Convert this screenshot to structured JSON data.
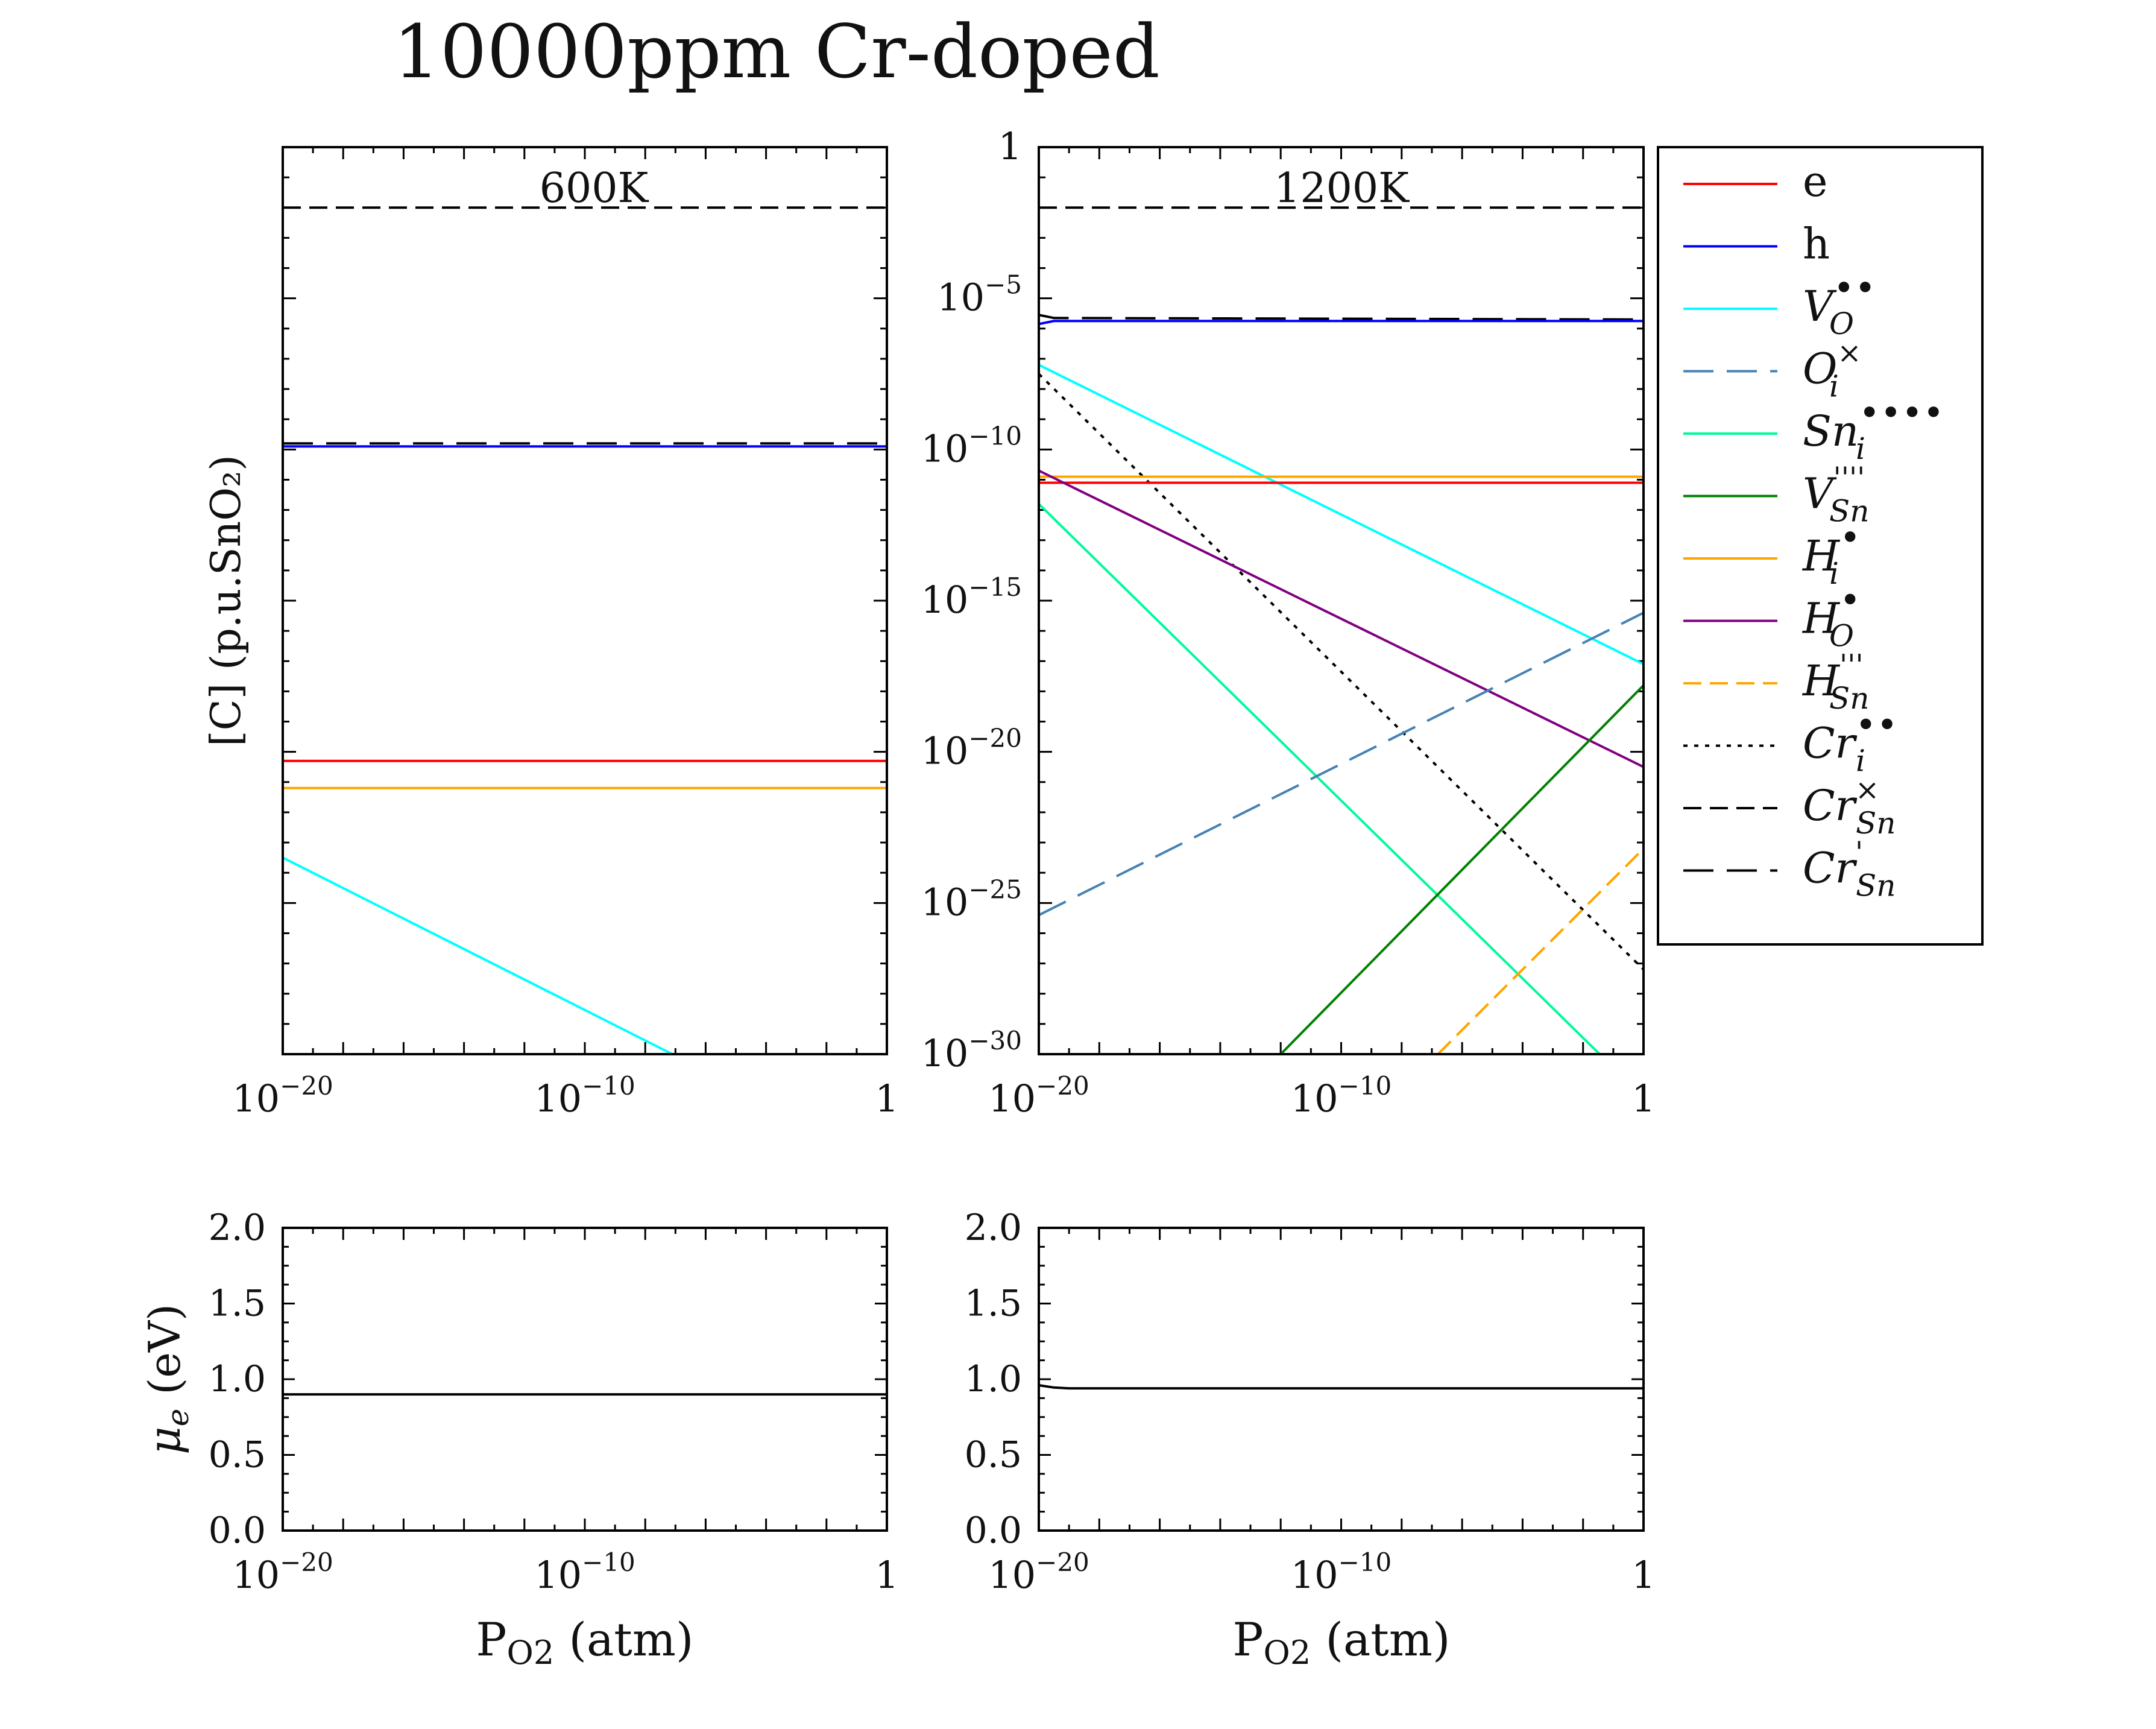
{
  "figure": {
    "title": "10000ppm Cr-doped"
  },
  "chart_data": [
    {
      "type": "line",
      "panel": "top-left",
      "annotation": "600K",
      "xscale": "log",
      "yscale": "log",
      "xlim_log10": [
        -20,
        0
      ],
      "ylim_log10": [
        -30,
        0
      ],
      "ylabel": "[C] (p.u.SnO₂)",
      "xticks": [
        {
          "exp": -20,
          "base": "10",
          "sup": "−20"
        },
        {
          "exp": -10,
          "base": "10",
          "sup": "−10"
        },
        {
          "exp": 0,
          "base": "1",
          "sup": ""
        }
      ],
      "yticks": [],
      "series": [
        {
          "key": "CrSn_x",
          "x": [
            -20,
            0
          ],
          "y": [
            -2.0,
            -2.0
          ]
        },
        {
          "key": "CrSn_1",
          "x": [
            -20,
            0
          ],
          "y": [
            -9.8,
            -9.8
          ]
        },
        {
          "key": "h",
          "x": [
            -20,
            0
          ],
          "y": [
            -9.9,
            -9.9
          ]
        },
        {
          "key": "e",
          "x": [
            -20,
            0
          ],
          "y": [
            -20.3,
            -20.3
          ]
        },
        {
          "key": "Hi",
          "x": [
            -20,
            0
          ],
          "y": [
            -21.2,
            -21.2
          ]
        },
        {
          "key": "VO",
          "x": [
            -20,
            -7.1
          ],
          "y": [
            -23.5,
            -30
          ]
        }
      ]
    },
    {
      "type": "line",
      "panel": "top-right",
      "annotation": "1200K",
      "xscale": "log",
      "yscale": "log",
      "xlim_log10": [
        -20,
        0
      ],
      "ylim_log10": [
        -30,
        0
      ],
      "xticks": [
        {
          "exp": -20,
          "base": "10",
          "sup": "−20"
        },
        {
          "exp": -10,
          "base": "10",
          "sup": "−10"
        },
        {
          "exp": 0,
          "base": "1",
          "sup": ""
        }
      ],
      "yticks": [
        {
          "exp": 0,
          "base": "1",
          "sup": ""
        },
        {
          "exp": -5,
          "base": "10",
          "sup": "−5"
        },
        {
          "exp": -10,
          "base": "10",
          "sup": "−10"
        },
        {
          "exp": -15,
          "base": "10",
          "sup": "−15"
        },
        {
          "exp": -20,
          "base": "10",
          "sup": "−20"
        },
        {
          "exp": -25,
          "base": "10",
          "sup": "−25"
        },
        {
          "exp": -30,
          "base": "10",
          "sup": "−30"
        }
      ],
      "series": [
        {
          "key": "CrSn_x",
          "x": [
            -20,
            0
          ],
          "y": [
            -2.0,
            -2.0
          ]
        },
        {
          "key": "CrSn_1",
          "x": [
            -20,
            -19.5,
            0
          ],
          "y": [
            -5.55,
            -5.65,
            -5.7
          ]
        },
        {
          "key": "h",
          "x": [
            -20,
            -19.5,
            0
          ],
          "y": [
            -5.85,
            -5.75,
            -5.75
          ]
        },
        {
          "key": "VO",
          "x": [
            -20,
            0
          ],
          "y": [
            -7.2,
            -17.1
          ]
        },
        {
          "key": "Cri",
          "x": [
            -20,
            0
          ],
          "y": [
            -7.5,
            -27.2
          ]
        },
        {
          "key": "Hi",
          "x": [
            -20,
            0
          ],
          "y": [
            -10.9,
            -10.9
          ]
        },
        {
          "key": "e",
          "x": [
            -20,
            0
          ],
          "y": [
            -11.1,
            -11.1
          ]
        },
        {
          "key": "HO",
          "x": [
            -20,
            0
          ],
          "y": [
            -10.7,
            -20.5
          ]
        },
        {
          "key": "Sni",
          "x": [
            -20,
            -1.45
          ],
          "y": [
            -11.8,
            -30
          ]
        },
        {
          "key": "Oi",
          "x": [
            -20,
            0
          ],
          "y": [
            -25.4,
            -15.4
          ]
        },
        {
          "key": "VSn",
          "x": [
            -12,
            0
          ],
          "y": [
            -30,
            -17.8
          ]
        },
        {
          "key": "HSn",
          "x": [
            -6.8,
            0
          ],
          "y": [
            -30,
            -23.2
          ]
        }
      ]
    },
    {
      "type": "line",
      "panel": "bottom-left",
      "xscale": "log",
      "xlim_log10": [
        -20,
        0
      ],
      "ylim": [
        0,
        2
      ],
      "xlabel_main": "P",
      "xlabel_sub": "O2",
      "xlabel_rest": " (atm)",
      "ylabel_sym": "μ",
      "ylabel_sub": "e",
      "ylabel_rest": " (eV)",
      "xticks": [
        {
          "exp": -20,
          "base": "10",
          "sup": "−20"
        },
        {
          "exp": -10,
          "base": "10",
          "sup": "−10"
        },
        {
          "exp": 0,
          "base": "1",
          "sup": ""
        }
      ],
      "yticks": [
        {
          "value": 0.0,
          "label": "0.0"
        },
        {
          "value": 0.5,
          "label": "0.5"
        },
        {
          "value": 1.0,
          "label": "1.0"
        },
        {
          "value": 1.5,
          "label": "1.5"
        },
        {
          "value": 2.0,
          "label": "2.0"
        }
      ],
      "series": [
        {
          "key": "mu",
          "x": [
            -20,
            0
          ],
          "y": [
            0.9,
            0.9
          ]
        }
      ]
    },
    {
      "type": "line",
      "panel": "bottom-right",
      "xscale": "log",
      "xlim_log10": [
        -20,
        0
      ],
      "ylim": [
        0,
        2
      ],
      "xlabel_main": "P",
      "xlabel_sub": "O2",
      "xlabel_rest": " (atm)",
      "xticks": [
        {
          "exp": -20,
          "base": "10",
          "sup": "−20"
        },
        {
          "exp": -10,
          "base": "10",
          "sup": "−10"
        },
        {
          "exp": 0,
          "base": "1",
          "sup": ""
        }
      ],
      "yticks": [
        {
          "value": 0.0,
          "label": "0.0"
        },
        {
          "value": 0.5,
          "label": "0.5"
        },
        {
          "value": 1.0,
          "label": "1.0"
        },
        {
          "value": 1.5,
          "label": "1.5"
        },
        {
          "value": 2.0,
          "label": "2.0"
        }
      ],
      "series": [
        {
          "key": "mu",
          "x": [
            -20,
            -19.5,
            -19,
            0
          ],
          "y": [
            0.96,
            0.945,
            0.94,
            0.94
          ]
        }
      ]
    }
  ],
  "legend": {
    "placement": "right",
    "entries": [
      {
        "key": "e",
        "base": "e",
        "sup": "",
        "sub": "",
        "style": "solid",
        "color": "#ff0000"
      },
      {
        "key": "h",
        "base": "h",
        "sup": "",
        "sub": "",
        "style": "solid",
        "color": "#0000ff"
      },
      {
        "key": "VO",
        "base": "V",
        "sup": "••",
        "sub": "O",
        "style": "solid",
        "color": "#00ffff"
      },
      {
        "key": "Oi",
        "base": "O",
        "sup": "×",
        "sub": "i",
        "style": "longdash",
        "color": "#4682b4"
      },
      {
        "key": "Sni",
        "base": "Sn",
        "sup": "••••",
        "sub": "i",
        "style": "solid",
        "color": "#00fa9a"
      },
      {
        "key": "VSn",
        "base": "V",
        "sup": "''''",
        "sub": "Sn",
        "style": "solid",
        "color": "#008000"
      },
      {
        "key": "Hi",
        "base": "H",
        "sup": "•",
        "sub": "i",
        "style": "solid",
        "color": "#ffa500"
      },
      {
        "key": "HO",
        "base": "H",
        "sup": "•",
        "sub": "O",
        "style": "solid",
        "color": "#800080"
      },
      {
        "key": "HSn",
        "base": "H",
        "sup": "'''",
        "sub": "Sn",
        "style": "dash",
        "color": "#ffa500"
      },
      {
        "key": "Cri",
        "base": "Cr",
        "sup": "••",
        "sub": "i",
        "style": "dot",
        "color": "#000000"
      },
      {
        "key": "CrSn_x",
        "base": "Cr",
        "sup": "×",
        "sub": "Sn",
        "style": "dash",
        "color": "#000000"
      },
      {
        "key": "CrSn_1",
        "base": "Cr",
        "sup": "'",
        "sub": "Sn",
        "style": "longdash",
        "color": "#000000"
      }
    ]
  }
}
